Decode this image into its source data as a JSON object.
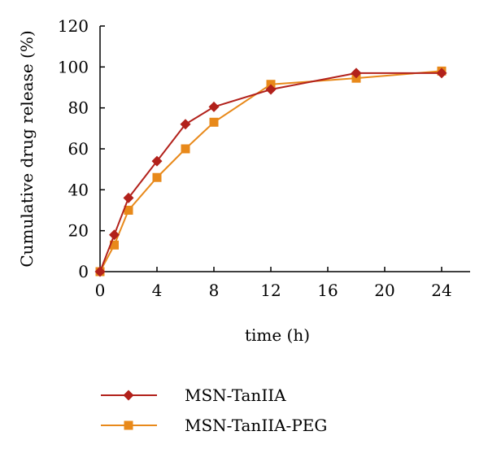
{
  "chart_data": {
    "type": "line",
    "xlabel": "time (h)",
    "ylabel": "Cumulative drug release (%)",
    "xlim": [
      0,
      24
    ],
    "ylim": [
      0,
      120
    ],
    "xticks": [
      0,
      4,
      8,
      12,
      16,
      20,
      24
    ],
    "yticks": [
      0,
      20,
      40,
      60,
      80,
      100,
      120
    ],
    "grid": false,
    "legend_position": "bottom",
    "series": [
      {
        "name": "MSN-TanIIA",
        "color": "#b2211b",
        "marker": "diamond",
        "x": [
          0,
          1,
          2,
          4,
          6,
          8,
          12,
          18,
          24
        ],
        "y": [
          0,
          18,
          36,
          54,
          72,
          80.5,
          89,
          97,
          97
        ]
      },
      {
        "name": "MSN-TanIIA-PEG",
        "color": "#e8891a",
        "marker": "square",
        "x": [
          0,
          1,
          2,
          4,
          6,
          8,
          12,
          18,
          24
        ],
        "y": [
          0,
          13,
          30,
          46,
          60,
          73,
          91.5,
          94.5,
          98
        ]
      }
    ]
  }
}
